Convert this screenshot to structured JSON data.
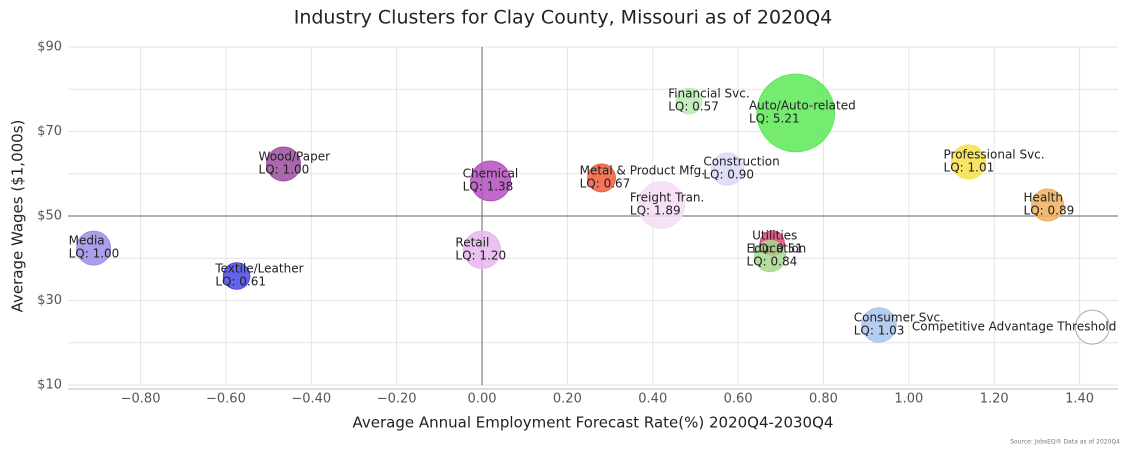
{
  "chart_data": {
    "type": "bubble",
    "title": "Industry Clusters for Clay County, Missouri as of 2020Q4",
    "x_label": "Average Annual Employment Forecast Rate(%) 2020Q4-2030Q4",
    "y_label": "Average Wages ($1,000s)",
    "source": "Source: JobsEQ® Data as of 2020Q4",
    "xlim": [
      -0.97,
      1.49
    ],
    "ylim": [
      10,
      90
    ],
    "xticks": [
      {
        "value": -0.8,
        "label": "−0.80"
      },
      {
        "value": -0.6,
        "label": "−0.60"
      },
      {
        "value": -0.4,
        "label": "−0.40"
      },
      {
        "value": -0.2,
        "label": "−0.20"
      },
      {
        "value": 0,
        "label": "0.00"
      },
      {
        "value": 0.2,
        "label": "0.20"
      },
      {
        "value": 0.4,
        "label": "0.40"
      },
      {
        "value": 0.6,
        "label": "0.60"
      },
      {
        "value": 0.8,
        "label": "0.80"
      },
      {
        "value": 1.0,
        "label": "1.00"
      },
      {
        "value": 1.2,
        "label": "1.20"
      },
      {
        "value": 1.4,
        "label": "1.40"
      }
    ],
    "yticks": [
      {
        "value": 10,
        "label": "$10"
      },
      {
        "value": 30,
        "label": "$30"
      },
      {
        "value": 50,
        "label": "$50"
      },
      {
        "value": 70,
        "label": "$70"
      },
      {
        "value": 90,
        "label": "$90"
      }
    ],
    "yminor_grid": [
      20,
      40,
      60,
      80
    ],
    "reference_x": 0,
    "reference_y": 50,
    "grid": true,
    "series": [
      {
        "name": "Media",
        "color": "#9b8fe6",
        "x": [
          -0.91
        ],
        "values": [
          42.4
        ],
        "sizes": [
          1.0
        ],
        "value_labels": [
          "LQ: 1.00"
        ]
      },
      {
        "name": "Textile/Leather",
        "color": "#4848e8",
        "x": [
          -0.575
        ],
        "values": [
          35.8
        ],
        "sizes": [
          0.61
        ],
        "value_labels": [
          "LQ: 0.61"
        ]
      },
      {
        "name": "Wood/Paper",
        "color": "#9c4ea0",
        "x": [
          -0.465
        ],
        "values": [
          62.3
        ],
        "sizes": [
          1.0
        ],
        "value_labels": [
          "LQ: 1.00"
        ]
      },
      {
        "name": "Chemical",
        "color": "#b44fc0",
        "x": [
          0.02
        ],
        "values": [
          58.3
        ],
        "sizes": [
          1.38
        ],
        "value_labels": [
          "LQ: 1.38"
        ]
      },
      {
        "name": "Retail",
        "color": "#e8b6ee",
        "x": [
          0.0
        ],
        "values": [
          42.0
        ],
        "sizes": [
          1.2
        ],
        "value_labels": [
          "LQ: 1.20"
        ]
      },
      {
        "name": "Metal & Product Mfg.",
        "color": "#f25e3c",
        "x": [
          0.28
        ],
        "values": [
          59.0
        ],
        "sizes": [
          0.67
        ],
        "value_labels": [
          "LQ: 0.67"
        ]
      },
      {
        "name": "Freight Tran.",
        "color": "#f6dcf5",
        "x": [
          0.42
        ],
        "values": [
          52.6
        ],
        "sizes": [
          1.89
        ],
        "value_labels": [
          "LQ: 1.89"
        ]
      },
      {
        "name": "Financial Svc.",
        "color": "#b8ecb0",
        "x": [
          0.485
        ],
        "values": [
          77.2
        ],
        "sizes": [
          0.57
        ],
        "value_labels": [
          "LQ: 0.57"
        ]
      },
      {
        "name": "Auto/Auto-related",
        "color": "#5de856",
        "x": [
          0.735
        ],
        "values": [
          74.4
        ],
        "sizes": [
          5.21
        ],
        "value_labels": [
          "LQ: 5.21"
        ]
      },
      {
        "name": "Construction",
        "color": "#d9d9f3",
        "x": [
          0.575
        ],
        "values": [
          61.1
        ],
        "sizes": [
          0.9
        ],
        "value_labels": [
          "LQ: 0.90"
        ]
      },
      {
        "name": "Utilities",
        "color": "#e0457a",
        "x": [
          0.68
        ],
        "values": [
          43.6
        ],
        "sizes": [
          0.51
        ],
        "value_labels": [
          "LQ: 0.51"
        ]
      },
      {
        "name": "Education",
        "color": "#a8d88f",
        "x": [
          0.675
        ],
        "values": [
          40.5
        ],
        "sizes": [
          0.84
        ],
        "value_labels": [
          "LQ: 0.84"
        ]
      },
      {
        "name": "Consumer Svc.",
        "color": "#a9c4f0",
        "x": [
          0.93
        ],
        "values": [
          24.2
        ],
        "sizes": [
          1.03
        ],
        "value_labels": [
          "LQ: 1.03"
        ]
      },
      {
        "name": "Professional Svc.",
        "color": "#f7e14a",
        "x": [
          1.14
        ],
        "values": [
          62.8
        ],
        "sizes": [
          1.01
        ],
        "value_labels": [
          "LQ: 1.01"
        ]
      },
      {
        "name": "Health",
        "color": "#f0b060",
        "x": [
          1.325
        ],
        "values": [
          52.6
        ],
        "sizes": [
          0.89
        ],
        "value_labels": [
          "LQ: 0.89"
        ]
      }
    ],
    "threshold": {
      "name": "Competitive Advantage Threshold",
      "x": 1.43,
      "y": 23.7,
      "size": 1.0,
      "color": "#ffffff"
    }
  }
}
